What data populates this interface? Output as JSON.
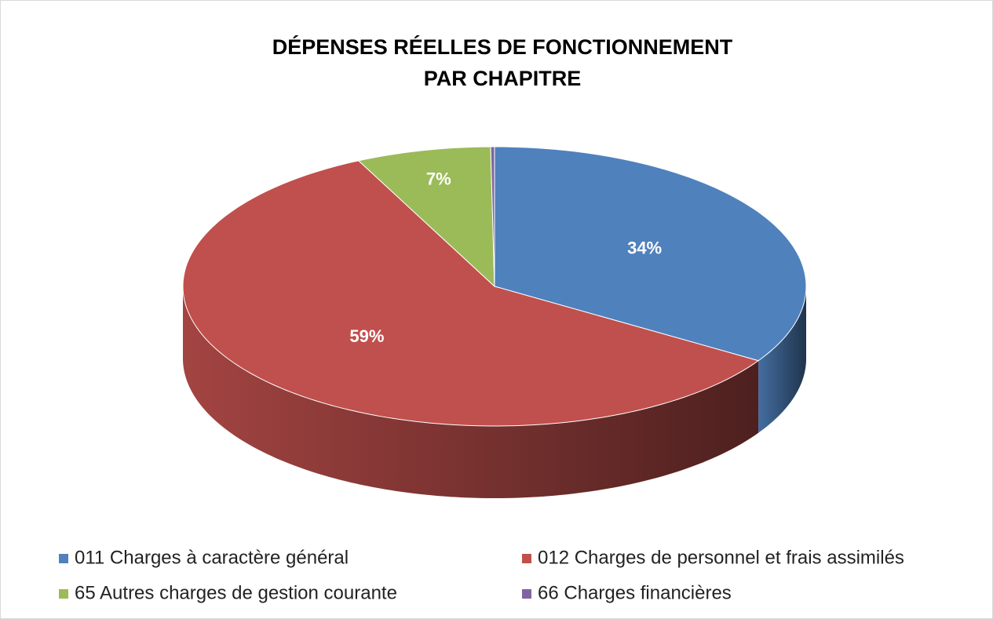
{
  "chart_data": {
    "type": "pie",
    "title": [
      "DÉPENSES RÉELLES DE FONCTIONNEMENT",
      "PAR CHAPITRE"
    ],
    "categories": [
      "011 Charges à caractère général",
      "012 Charges de personnel et frais assimilés",
      "65 Autres charges de gestion courante",
      "66 Charges financières"
    ],
    "values": [
      34,
      59,
      7,
      0.2
    ],
    "value_labels": [
      "34%",
      "59%",
      "7%",
      null
    ],
    "colors": [
      "#4f81bd",
      "#c0504d",
      "#9bbb59",
      "#8064a2"
    ],
    "legend": "bottom"
  }
}
